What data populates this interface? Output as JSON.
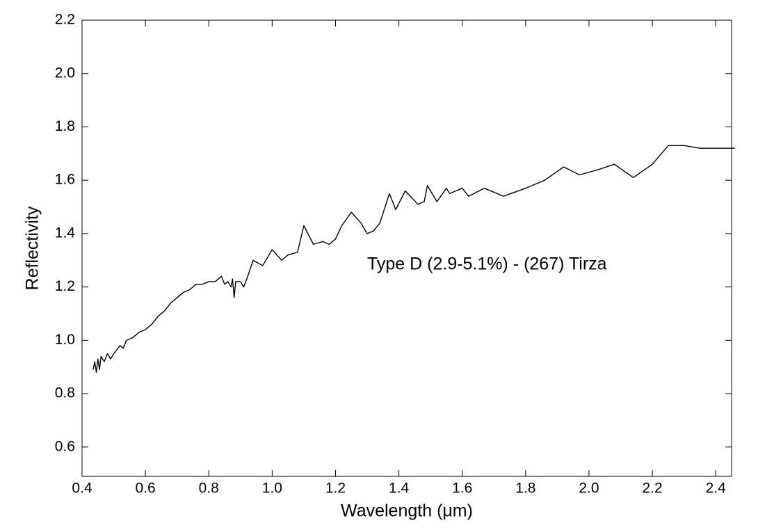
{
  "chart_data": {
    "type": "line",
    "xlabel": "Wavelength (μm)",
    "ylabel": "Reflectivity",
    "annotation": "Type D (2.9-5.1%) - (267) Tirza",
    "color": "#000000",
    "xlim": [
      0.4,
      2.45
    ],
    "ylim": [
      0.49,
      2.2
    ],
    "xticks": [
      0.4,
      0.6,
      0.8,
      {
        "value": 1.0,
        "label": "1.0"
      },
      1.2,
      1.4,
      1.6,
      1.8,
      {
        "value": 2.0,
        "label": "2.0"
      },
      2.2,
      2.4
    ],
    "yticks": [
      0.6,
      0.8,
      {
        "value": 1.0,
        "label": "1.0"
      },
      1.2,
      1.4,
      1.6,
      1.8,
      {
        "value": 2.0,
        "label": "2.0"
      },
      2.2
    ],
    "x": [
      0.435,
      0.44,
      0.445,
      0.45,
      0.455,
      0.46,
      0.47,
      0.48,
      0.49,
      0.5,
      0.52,
      0.53,
      0.54,
      0.56,
      0.58,
      0.6,
      0.62,
      0.64,
      0.66,
      0.68,
      0.7,
      0.72,
      0.74,
      0.76,
      0.78,
      0.8,
      0.82,
      0.84,
      0.85,
      0.86,
      0.87,
      0.875,
      0.88,
      0.885,
      0.9,
      0.91,
      0.92,
      0.94,
      0.97,
      1.0,
      1.03,
      1.05,
      1.08,
      1.1,
      1.13,
      1.16,
      1.18,
      1.2,
      1.22,
      1.25,
      1.28,
      1.3,
      1.32,
      1.34,
      1.37,
      1.39,
      1.42,
      1.46,
      1.48,
      1.49,
      1.52,
      1.55,
      1.56,
      1.6,
      1.62,
      1.67,
      1.73,
      1.8,
      1.86,
      1.92,
      1.97,
      2.03,
      2.08,
      2.14,
      2.2,
      2.25,
      2.3,
      2.35,
      2.4,
      2.46
    ],
    "values": [
      0.89,
      0.92,
      0.88,
      0.93,
      0.89,
      0.94,
      0.92,
      0.95,
      0.93,
      0.95,
      0.98,
      0.97,
      1.0,
      1.01,
      1.03,
      1.04,
      1.06,
      1.09,
      1.11,
      1.14,
      1.16,
      1.18,
      1.19,
      1.21,
      1.21,
      1.22,
      1.22,
      1.24,
      1.21,
      1.22,
      1.2,
      1.23,
      1.16,
      1.22,
      1.22,
      1.2,
      1.23,
      1.3,
      1.28,
      1.34,
      1.3,
      1.32,
      1.33,
      1.43,
      1.36,
      1.37,
      1.36,
      1.38,
      1.43,
      1.48,
      1.44,
      1.4,
      1.41,
      1.44,
      1.55,
      1.49,
      1.56,
      1.51,
      1.52,
      1.58,
      1.52,
      1.57,
      1.55,
      1.57,
      1.54,
      1.57,
      1.54,
      1.57,
      1.6,
      1.65,
      1.62,
      1.64,
      1.66,
      1.61,
      1.66,
      1.73,
      1.73,
      1.72,
      1.72,
      1.72
    ]
  }
}
